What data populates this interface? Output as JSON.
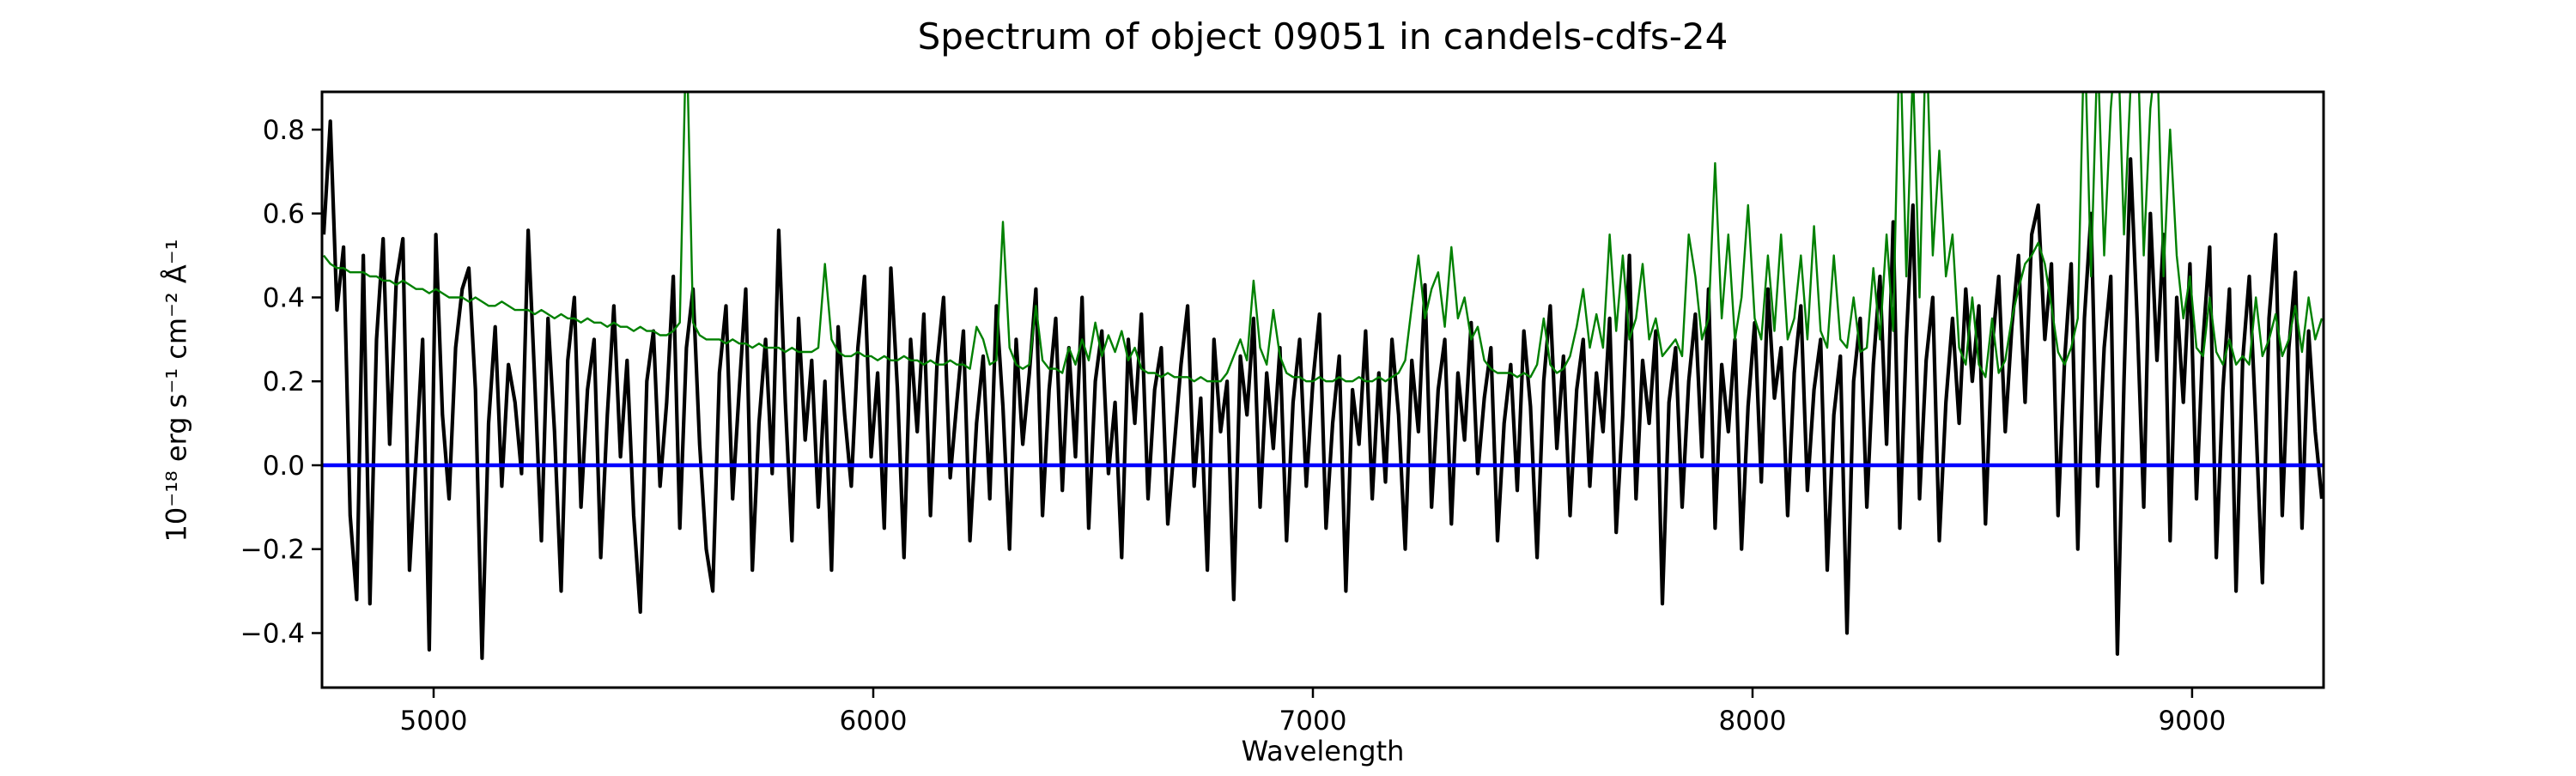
{
  "chart_data": {
    "type": "line",
    "title": "Spectrum of object 09051 in candels-cdfs-24",
    "xlabel": "Wavelength",
    "ylabel": "10⁻¹⁸ erg s⁻¹ cm⁻² Å⁻¹",
    "xlim": [
      4746,
      9299
    ],
    "ylim": [
      -0.53,
      0.89
    ],
    "grid": false,
    "legend": null,
    "background": "#ffffff",
    "x_ticks": {
      "values": [
        5000,
        6000,
        7000,
        8000,
        9000
      ],
      "labels": [
        "5000",
        "6000",
        "7000",
        "8000",
        "9000"
      ]
    },
    "y_ticks": {
      "values": [
        0.8,
        0.6,
        0.4,
        0.2,
        0.0,
        -0.2,
        -0.4
      ],
      "labels": [
        "0.8",
        "0.6",
        "0.4",
        "0.2",
        "0.0",
        "−0.2",
        "−0.4"
      ]
    },
    "series": [
      {
        "name": "flux",
        "description": "observed spectrum (black)",
        "color": "#000000",
        "line_width": 4.2,
        "wave_start": 4750,
        "wave_end": 9295,
        "values": [
          0.55,
          0.82,
          0.37,
          0.52,
          -0.12,
          -0.32,
          0.5,
          -0.33,
          0.3,
          0.54,
          0.05,
          0.44,
          0.54,
          -0.25,
          0.02,
          0.3,
          -0.44,
          0.55,
          0.12,
          -0.08,
          0.28,
          0.42,
          0.47,
          0.18,
          -0.46,
          0.1,
          0.33,
          -0.05,
          0.24,
          0.15,
          -0.02,
          0.56,
          0.2,
          -0.18,
          0.35,
          0.08,
          -0.3,
          0.25,
          0.4,
          -0.1,
          0.18,
          0.3,
          -0.22,
          0.12,
          0.38,
          0.02,
          0.25,
          -0.12,
          -0.35,
          0.2,
          0.32,
          -0.05,
          0.15,
          0.45,
          -0.15,
          0.28,
          0.42,
          0.05,
          -0.2,
          -0.3,
          0.22,
          0.38,
          -0.08,
          0.18,
          0.42,
          -0.25,
          0.1,
          0.3,
          -0.02,
          0.56,
          0.15,
          -0.18,
          0.35,
          0.06,
          0.25,
          -0.1,
          0.2,
          -0.25,
          0.33,
          0.12,
          -0.05,
          0.28,
          0.45,
          0.02,
          0.22,
          -0.15,
          0.47,
          0.18,
          -0.22,
          0.3,
          0.08,
          0.36,
          -0.12,
          0.24,
          0.4,
          -0.03,
          0.15,
          0.32,
          -0.18,
          0.1,
          0.26,
          -0.08,
          0.38,
          0.14,
          -0.2,
          0.3,
          0.05,
          0.22,
          0.42,
          -0.12,
          0.18,
          0.35,
          -0.06,
          0.28,
          0.02,
          0.4,
          -0.15,
          0.2,
          0.32,
          -0.02,
          0.15,
          -0.22,
          0.3,
          0.1,
          0.36,
          -0.08,
          0.18,
          0.28,
          -0.14,
          0.05,
          0.24,
          0.38,
          -0.05,
          0.16,
          -0.25,
          0.3,
          0.08,
          0.2,
          -0.32,
          0.26,
          0.12,
          0.35,
          -0.1,
          0.22,
          0.04,
          0.28,
          -0.18,
          0.15,
          0.3,
          -0.05,
          0.2,
          0.36,
          -0.15,
          0.1,
          0.26,
          -0.3,
          0.18,
          0.05,
          0.32,
          -0.08,
          0.22,
          -0.04,
          0.3,
          0.12,
          -0.2,
          0.25,
          0.08,
          0.43,
          -0.1,
          0.18,
          0.3,
          -0.14,
          0.22,
          0.06,
          0.34,
          -0.02,
          0.16,
          0.28,
          -0.18,
          0.1,
          0.24,
          -0.06,
          0.32,
          0.14,
          -0.22,
          0.2,
          0.38,
          0.04,
          0.26,
          -0.12,
          0.18,
          0.3,
          -0.05,
          0.22,
          0.08,
          0.35,
          -0.16,
          0.12,
          0.5,
          -0.08,
          0.25,
          0.1,
          0.32,
          -0.33,
          0.15,
          0.28,
          -0.1,
          0.2,
          0.36,
          0.02,
          0.42,
          -0.15,
          0.24,
          0.08,
          0.3,
          -0.2,
          0.14,
          0.34,
          -0.04,
          0.42,
          0.16,
          0.28,
          -0.12,
          0.22,
          0.38,
          -0.06,
          0.18,
          0.3,
          -0.25,
          0.12,
          0.26,
          -0.4,
          0.2,
          0.35,
          -0.1,
          0.24,
          0.45,
          0.05,
          0.58,
          -0.15,
          0.3,
          0.62,
          -0.08,
          0.25,
          0.4,
          -0.18,
          0.15,
          0.35,
          0.1,
          0.42,
          0.2,
          0.38,
          -0.14,
          0.28,
          0.45,
          0.08,
          0.33,
          0.5,
          0.15,
          0.55,
          0.62,
          0.3,
          0.48,
          -0.12,
          0.25,
          0.48,
          -0.2,
          0.35,
          0.6,
          -0.05,
          0.28,
          0.45,
          -0.45,
          0.2,
          0.73,
          0.35,
          -0.1,
          0.6,
          0.25,
          0.55,
          -0.18,
          0.4,
          0.15,
          0.48,
          -0.08,
          0.3,
          0.52,
          -0.22,
          0.18,
          0.42,
          -0.3,
          0.25,
          0.45,
          0.1,
          -0.28,
          0.35,
          0.55,
          -0.12,
          0.28,
          0.46,
          -0.15,
          0.32,
          0.08,
          -0.08
        ]
      },
      {
        "name": "noise",
        "description": "noise / sky spectrum (green)",
        "color": "#008000",
        "line_width": 2.4,
        "wave_start": 4750,
        "wave_end": 9295,
        "values": [
          0.5,
          0.48,
          0.47,
          0.47,
          0.46,
          0.46,
          0.46,
          0.45,
          0.45,
          0.44,
          0.44,
          0.43,
          0.44,
          0.43,
          0.42,
          0.42,
          0.41,
          0.42,
          0.41,
          0.4,
          0.4,
          0.4,
          0.39,
          0.4,
          0.39,
          0.38,
          0.38,
          0.39,
          0.38,
          0.37,
          0.37,
          0.37,
          0.36,
          0.37,
          0.36,
          0.35,
          0.36,
          0.35,
          0.35,
          0.34,
          0.35,
          0.34,
          0.34,
          0.33,
          0.34,
          0.33,
          0.33,
          0.32,
          0.33,
          0.32,
          0.32,
          0.31,
          0.31,
          0.32,
          0.34,
          1.05,
          0.34,
          0.31,
          0.3,
          0.3,
          0.3,
          0.29,
          0.3,
          0.29,
          0.29,
          0.28,
          0.29,
          0.28,
          0.28,
          0.28,
          0.27,
          0.28,
          0.27,
          0.27,
          0.27,
          0.28,
          0.48,
          0.3,
          0.27,
          0.26,
          0.26,
          0.27,
          0.26,
          0.26,
          0.25,
          0.26,
          0.25,
          0.25,
          0.26,
          0.25,
          0.25,
          0.24,
          0.25,
          0.24,
          0.24,
          0.25,
          0.24,
          0.24,
          0.23,
          0.33,
          0.3,
          0.24,
          0.25,
          0.58,
          0.28,
          0.24,
          0.23,
          0.24,
          0.38,
          0.25,
          0.23,
          0.23,
          0.22,
          0.28,
          0.24,
          0.3,
          0.25,
          0.34,
          0.26,
          0.31,
          0.27,
          0.32,
          0.25,
          0.28,
          0.23,
          0.22,
          0.22,
          0.21,
          0.22,
          0.21,
          0.21,
          0.21,
          0.2,
          0.21,
          0.2,
          0.2,
          0.2,
          0.22,
          0.26,
          0.3,
          0.25,
          0.44,
          0.28,
          0.24,
          0.37,
          0.26,
          0.22,
          0.21,
          0.21,
          0.2,
          0.2,
          0.21,
          0.2,
          0.2,
          0.21,
          0.2,
          0.2,
          0.21,
          0.2,
          0.2,
          0.21,
          0.2,
          0.21,
          0.22,
          0.25,
          0.38,
          0.5,
          0.35,
          0.42,
          0.46,
          0.33,
          0.52,
          0.35,
          0.4,
          0.3,
          0.33,
          0.25,
          0.23,
          0.22,
          0.22,
          0.22,
          0.21,
          0.22,
          0.21,
          0.24,
          0.35,
          0.24,
          0.22,
          0.23,
          0.26,
          0.33,
          0.42,
          0.28,
          0.36,
          0.28,
          0.55,
          0.32,
          0.5,
          0.3,
          0.35,
          0.48,
          0.3,
          0.35,
          0.26,
          0.28,
          0.3,
          0.26,
          0.55,
          0.45,
          0.3,
          0.35,
          0.72,
          0.35,
          0.55,
          0.3,
          0.4,
          0.62,
          0.35,
          0.3,
          0.5,
          0.32,
          0.55,
          0.3,
          0.35,
          0.5,
          0.3,
          0.57,
          0.32,
          0.28,
          0.5,
          0.3,
          0.28,
          0.4,
          0.27,
          0.28,
          0.47,
          0.3,
          0.55,
          0.32,
          1.05,
          0.45,
          0.95,
          0.4,
          1.05,
          0.5,
          0.75,
          0.45,
          0.55,
          0.28,
          0.24,
          0.4,
          0.24,
          0.21,
          0.35,
          0.22,
          0.25,
          0.35,
          0.42,
          0.48,
          0.5,
          0.53,
          0.48,
          0.38,
          0.27,
          0.24,
          0.28,
          0.35,
          1.05,
          0.45,
          1.0,
          0.5,
          0.85,
          1.05,
          0.55,
          0.9,
          1.05,
          0.5,
          0.85,
          1.0,
          0.45,
          0.8,
          0.5,
          0.35,
          0.45,
          0.28,
          0.26,
          0.4,
          0.27,
          0.24,
          0.3,
          0.24,
          0.26,
          0.24,
          0.4,
          0.26,
          0.3,
          0.36,
          0.26,
          0.3,
          0.38,
          0.27,
          0.4,
          0.3,
          0.35
        ]
      },
      {
        "name": "zero-line",
        "description": "horizontal reference line at flux = 0 (blue)",
        "color": "#0000ff",
        "line_width": 4.5,
        "wave_start": 4746,
        "wave_end": 9299,
        "values": [
          0.0,
          0.0
        ]
      }
    ]
  }
}
